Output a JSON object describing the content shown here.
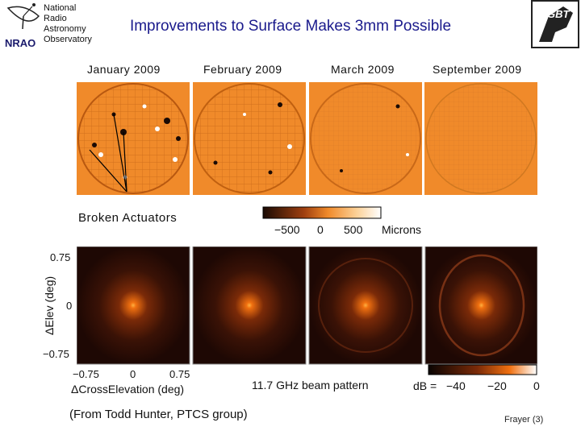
{
  "logo": {
    "lines": [
      "National",
      "Radio",
      "Astronomy",
      "Observatory"
    ],
    "mark": "NRAO"
  },
  "title": "Improvements to Surface Makes 3mm Possible",
  "gbt_logo": "GBT",
  "months": [
    "January 2009",
    "February 2009",
    "March 2009",
    "September 2009"
  ],
  "annotation": "Broken Actuators",
  "surface_colorbar": {
    "ticks": [
      "−500",
      "0",
      "500"
    ],
    "unit": "Microns"
  },
  "beam_axes": {
    "y_label": "ΔElev (deg)",
    "y_ticks": [
      "0.75",
      "0",
      "−0.75"
    ],
    "x_label": "ΔCrossElevation (deg)",
    "x_ticks": [
      "−0.75",
      "0",
      "0.75"
    ]
  },
  "beam_caption": "11.7 GHz beam pattern",
  "beam_colorbar": {
    "prefix": "dB =",
    "ticks": [
      "−40",
      "−20",
      "0"
    ]
  },
  "footer": {
    "credit": "(From Todd Hunter, PTCS group)",
    "page": "Frayer (3)"
  },
  "colors": {
    "title": "#1a1a8c",
    "surface_bg": "#f08a2a",
    "beam_bg": "#2a0f06"
  }
}
